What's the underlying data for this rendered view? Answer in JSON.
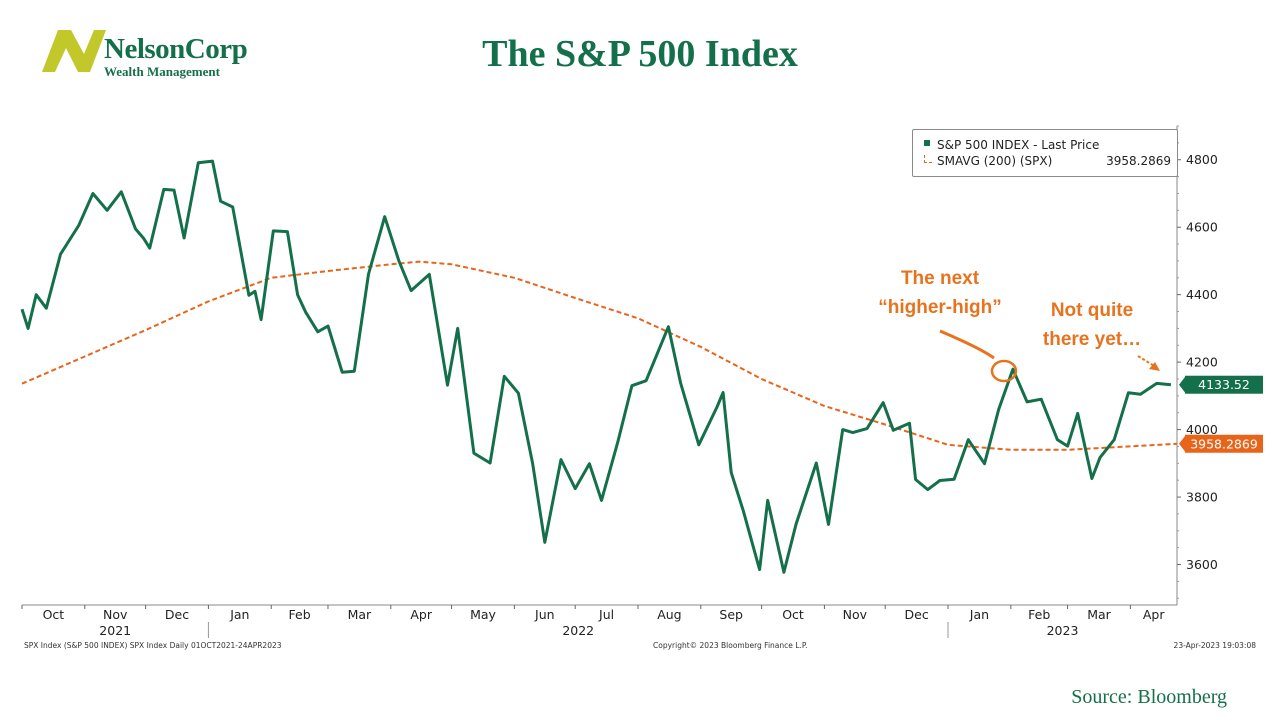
{
  "logo": {
    "name": "NelsonCorp",
    "sub": "Wealth Management",
    "mark": "N"
  },
  "title": "The S&P 500 Index",
  "source": "Source:  Bloomberg",
  "footer": {
    "left": "SPX Index (S&P 500 INDEX) SPX Index  Daily 01OCT2021-24APR2023",
    "center": "Copyright© 2023 Bloomberg Finance L.P.",
    "right": "23-Apr-2023 19:03:08"
  },
  "legend": {
    "series1": "S&P 500 INDEX - Last Price",
    "series2": "SMAVG (200) (SPX)",
    "series2_value": "3958.2869"
  },
  "annotations": {
    "higher_high": [
      "The next",
      "“higher-high”"
    ],
    "not_there": [
      "Not quite",
      "there yet…"
    ]
  },
  "colors": {
    "price": "#14704a",
    "sma": "#e8641b",
    "annotation": "#e8731f",
    "brand": "#14704a",
    "logo_mark": "#c2c72a"
  },
  "chart_data": {
    "type": "line",
    "x_range": [
      "2021-10-01",
      "2023-04-24"
    ],
    "ylim": [
      3480,
      4900
    ],
    "y_ticks": [
      3600,
      3800,
      4000,
      4200,
      4400,
      4600,
      4800
    ],
    "month_labels": [
      "Oct",
      "Nov",
      "Dec",
      "Jan",
      "Feb",
      "Mar",
      "Apr",
      "May",
      "Jun",
      "Jul",
      "Aug",
      "Sep",
      "Oct",
      "Nov",
      "Dec",
      "Jan",
      "Feb",
      "Mar",
      "Apr"
    ],
    "year_labels": [
      "2021",
      "2022",
      "2023"
    ],
    "last_labels": {
      "price": "4133.52",
      "sma": "3958.2869"
    },
    "series": [
      {
        "name": "S&P 500 INDEX - Last Price",
        "x": [
          "2021-10-01",
          "2021-10-04",
          "2021-10-08",
          "2021-10-13",
          "2021-10-20",
          "2021-10-29",
          "2021-11-05",
          "2021-11-12",
          "2021-11-19",
          "2021-11-26",
          "2021-11-30",
          "2021-12-03",
          "2021-12-10",
          "2021-12-15",
          "2021-12-20",
          "2021-12-27",
          "2022-01-03",
          "2022-01-07",
          "2022-01-13",
          "2022-01-21",
          "2022-01-24",
          "2022-01-27",
          "2022-02-02",
          "2022-02-09",
          "2022-02-14",
          "2022-02-18",
          "2022-02-24",
          "2022-03-01",
          "2022-03-08",
          "2022-03-14",
          "2022-03-21",
          "2022-03-29",
          "2022-04-05",
          "2022-04-11",
          "2022-04-20",
          "2022-04-29",
          "2022-05-04",
          "2022-05-12",
          "2022-05-20",
          "2022-05-27",
          "2022-06-03",
          "2022-06-10",
          "2022-06-16",
          "2022-06-24",
          "2022-07-01",
          "2022-07-08",
          "2022-07-14",
          "2022-07-22",
          "2022-07-29",
          "2022-08-05",
          "2022-08-16",
          "2022-08-22",
          "2022-08-31",
          "2022-09-09",
          "2022-09-12",
          "2022-09-16",
          "2022-09-22",
          "2022-09-30",
          "2022-10-04",
          "2022-10-12",
          "2022-10-18",
          "2022-10-28",
          "2022-11-03",
          "2022-11-10",
          "2022-11-15",
          "2022-11-22",
          "2022-11-30",
          "2022-12-05",
          "2022-12-13",
          "2022-12-16",
          "2022-12-22",
          "2022-12-28",
          "2023-01-04",
          "2023-01-11",
          "2023-01-19",
          "2023-01-26",
          "2023-02-02",
          "2023-02-09",
          "2023-02-16",
          "2023-02-24",
          "2023-03-01",
          "2023-03-06",
          "2023-03-13",
          "2023-03-17",
          "2023-03-24",
          "2023-03-31",
          "2023-04-06",
          "2023-04-14",
          "2023-04-21"
        ],
        "values": [
          4357,
          4300,
          4400,
          4360,
          4520,
          4605,
          4700,
          4650,
          4705,
          4595,
          4567,
          4538,
          4712,
          4710,
          4568,
          4791,
          4796,
          4677,
          4660,
          4398,
          4410,
          4326,
          4589,
          4587,
          4400,
          4348,
          4290,
          4307,
          4170,
          4173,
          4461,
          4631,
          4500,
          4412,
          4460,
          4132,
          4300,
          3930,
          3901,
          4158,
          4108,
          3900,
          3666,
          3911,
          3825,
          3899,
          3790,
          3962,
          4130,
          4145,
          4305,
          4138,
          3955,
          4067,
          4110,
          3873,
          3758,
          3585,
          3790,
          3577,
          3720,
          3901,
          3719,
          4000,
          3991,
          4003,
          4080,
          3998,
          4019,
          3852,
          3822,
          3849,
          3853,
          3970,
          3899,
          4060,
          4179,
          4082,
          4090,
          3970,
          3951,
          4048,
          3855,
          3917,
          3970,
          4109,
          4105,
          4137,
          4133
        ]
      },
      {
        "name": "SMAVG (200) (SPX)",
        "x": [
          "2021-10-01",
          "2021-12-01",
          "2022-01-01",
          "2022-02-01",
          "2022-03-01",
          "2022-04-01",
          "2022-04-15",
          "2022-05-01",
          "2022-06-01",
          "2022-07-01",
          "2022-08-01",
          "2022-09-01",
          "2022-10-01",
          "2022-11-01",
          "2022-12-01",
          "2023-01-01",
          "2023-02-01",
          "2023-03-01",
          "2023-04-24"
        ],
        "values": [
          4136,
          4295,
          4380,
          4450,
          4470,
          4490,
          4498,
          4490,
          4450,
          4390,
          4330,
          4245,
          4150,
          4070,
          4015,
          3955,
          3940,
          3940,
          3958
        ]
      }
    ]
  }
}
